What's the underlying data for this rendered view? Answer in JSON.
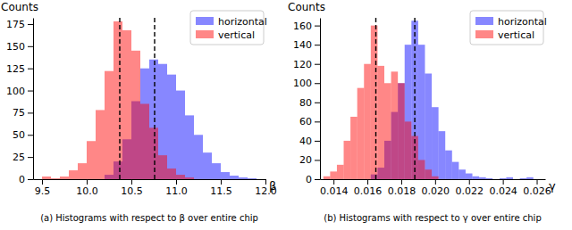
{
  "chart_data": [
    {
      "type": "histogram",
      "title": "(a) Histograms with respect to β over entire chip",
      "x_label": "β",
      "y_label": "Counts",
      "xlim": [
        9.4,
        12.0
      ],
      "ylim": [
        0,
        182
      ],
      "xticks": [
        9.5,
        {
          "value": 10,
          "label": "10.0"
        },
        10.5,
        {
          "value": 11,
          "label": "11.0"
        },
        11.5,
        {
          "value": 12,
          "label": "12.0"
        }
      ],
      "yticks": [
        0,
        25,
        50,
        75,
        100,
        125,
        150,
        175
      ],
      "legend": "upper right",
      "grid": false,
      "series": [
        {
          "name": "horizontal",
          "color": "#0000ff",
          "bins": [
            10.2,
            10.3,
            10.4,
            10.5,
            10.6,
            10.7,
            10.8,
            10.9,
            11.0,
            11.1,
            11.2,
            11.3,
            11.4,
            11.5,
            11.6,
            11.7,
            11.8,
            11.9
          ],
          "values": [
            5,
            20,
            45,
            88,
            125,
            135,
            130,
            118,
            100,
            72,
            50,
            30,
            18,
            8,
            4,
            2,
            1
          ]
        },
        {
          "name": "vertical",
          "color": "#ff0000",
          "bins": [
            9.5,
            9.6,
            9.7,
            9.8,
            9.9,
            10.0,
            10.1,
            10.2,
            10.3,
            10.4,
            10.5,
            10.6,
            10.7,
            10.8,
            10.9,
            11.0,
            11.1,
            11.2
          ],
          "values": [
            3,
            1,
            3,
            10,
            18,
            43,
            78,
            122,
            178,
            168,
            145,
            85,
            58,
            27,
            12,
            5,
            2
          ]
        }
      ],
      "vlines": [
        10.37,
        10.76
      ]
    },
    {
      "type": "histogram",
      "title": "(b) Histograms with respect to γ over entire chip",
      "x_label": "γ",
      "y_label": "Counts",
      "xlim": [
        0.0132,
        0.0265
      ],
      "ylim": [
        0,
        168
      ],
      "xticks": [
        0.014,
        0.016,
        0.018,
        {
          "value": 0.02,
          "label": "0.020"
        },
        0.022,
        0.024,
        0.026
      ],
      "yticks": [
        0,
        20,
        40,
        60,
        80,
        100,
        120,
        140,
        160
      ],
      "legend": "upper right",
      "grid": false,
      "series": [
        {
          "name": "horizontal",
          "color": "#0000ff",
          "bins": [
            0.0162,
            0.0166,
            0.017,
            0.0174,
            0.0178,
            0.0182,
            0.0186,
            0.019,
            0.0194,
            0.0198,
            0.0202,
            0.0206,
            0.021,
            0.0214,
            0.0218,
            0.0222,
            0.0226,
            0.023,
            0.0234,
            0.0238,
            0.0242,
            0.0246,
            0.025,
            0.0254,
            0.0258
          ],
          "values": [
            5,
            12,
            40,
            70,
            100,
            140,
            165,
            140,
            110,
            75,
            50,
            30,
            18,
            10,
            6,
            3,
            2,
            1,
            0,
            1,
            2,
            0,
            1,
            2
          ]
        },
        {
          "name": "vertical",
          "color": "#ff0000",
          "bins": [
            0.0134,
            0.0138,
            0.0142,
            0.0146,
            0.015,
            0.0154,
            0.0158,
            0.0162,
            0.0166,
            0.017,
            0.0174,
            0.0178,
            0.0182,
            0.0186,
            0.019,
            0.0194,
            0.0198,
            0.0202
          ],
          "values": [
            3,
            8,
            15,
            40,
            65,
            95,
            120,
            160,
            118,
            100,
            112,
            100,
            60,
            45,
            20,
            10,
            3
          ]
        }
      ],
      "vlines": [
        0.0165,
        0.0188
      ]
    }
  ]
}
